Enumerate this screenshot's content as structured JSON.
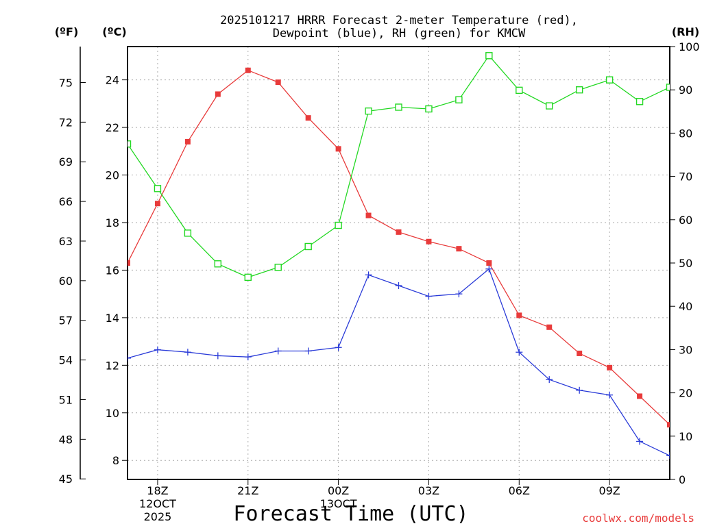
{
  "chart_data": {
    "type": "line",
    "title_line1": "2025101217 HRRR Forecast 2-meter Temperature (red),",
    "title_line2": "Dewpoint (blue), RH (green) for KMCW",
    "xlabel": "Forecast Time (UTC)",
    "credit": "coolwx.com/models",
    "left_outer_unit": "(ºF)",
    "left_inner_unit": "(ºC)",
    "right_unit": "(RH)",
    "x_hours": [
      17,
      18,
      19,
      20,
      21,
      22,
      23,
      24,
      25,
      26,
      27,
      28,
      29,
      30,
      31,
      32,
      33,
      34,
      35
    ],
    "x_range": [
      17,
      35
    ],
    "x_ticks": [
      {
        "hour": 18,
        "label": "18Z",
        "sub1": "12OCT",
        "sub2": "2025"
      },
      {
        "hour": 21,
        "label": "21Z",
        "sub1": "",
        "sub2": ""
      },
      {
        "hour": 24,
        "label": "00Z",
        "sub1": "13OCT",
        "sub2": ""
      },
      {
        "hour": 27,
        "label": "03Z",
        "sub1": "",
        "sub2": ""
      },
      {
        "hour": 30,
        "label": "06Z",
        "sub1": "",
        "sub2": ""
      },
      {
        "hour": 33,
        "label": "09Z",
        "sub1": "",
        "sub2": ""
      }
    ],
    "celsius_range": [
      7.2,
      25.4
    ],
    "celsius_ticks": [
      "8",
      "10",
      "12",
      "14",
      "16",
      "18",
      "20",
      "22",
      "24"
    ],
    "fahrenheit_ticks": [
      "45",
      "48",
      "51",
      "54",
      "57",
      "60",
      "63",
      "66",
      "69",
      "72",
      "75"
    ],
    "rh_range": [
      0,
      100
    ],
    "rh_ticks": [
      "0",
      "10",
      "20",
      "30",
      "40",
      "50",
      "60",
      "70",
      "80",
      "90",
      "100"
    ],
    "series": [
      {
        "name": "Temperature",
        "units": "C",
        "color": "#e83b3b",
        "marker": "filled-square",
        "values": [
          16.3,
          18.8,
          21.4,
          23.4,
          24.4,
          23.9,
          22.4,
          21.1,
          18.3,
          17.6,
          17.2,
          16.9,
          16.3,
          14.1,
          13.6,
          12.5,
          11.9,
          10.7,
          9.5
        ]
      },
      {
        "name": "Dewpoint",
        "units": "C",
        "color": "#2a3bd8",
        "marker": "plus",
        "values": [
          12.3,
          12.65,
          12.55,
          12.4,
          12.35,
          12.6,
          12.6,
          12.75,
          15.8,
          15.35,
          14.9,
          15.0,
          16.05,
          12.55,
          11.4,
          10.95,
          10.75,
          8.8,
          8.2
        ]
      },
      {
        "name": "RH",
        "units": "%",
        "color": "#22d822",
        "marker": "open-square",
        "values": [
          77.5,
          67.2,
          56.9,
          49.8,
          46.7,
          49.0,
          53.8,
          58.7,
          85.1,
          86.0,
          85.6,
          87.7,
          97.9,
          89.9,
          86.3,
          90.0,
          92.3,
          87.3,
          90.6
        ]
      }
    ],
    "grid": true,
    "legend": "in-title"
  }
}
